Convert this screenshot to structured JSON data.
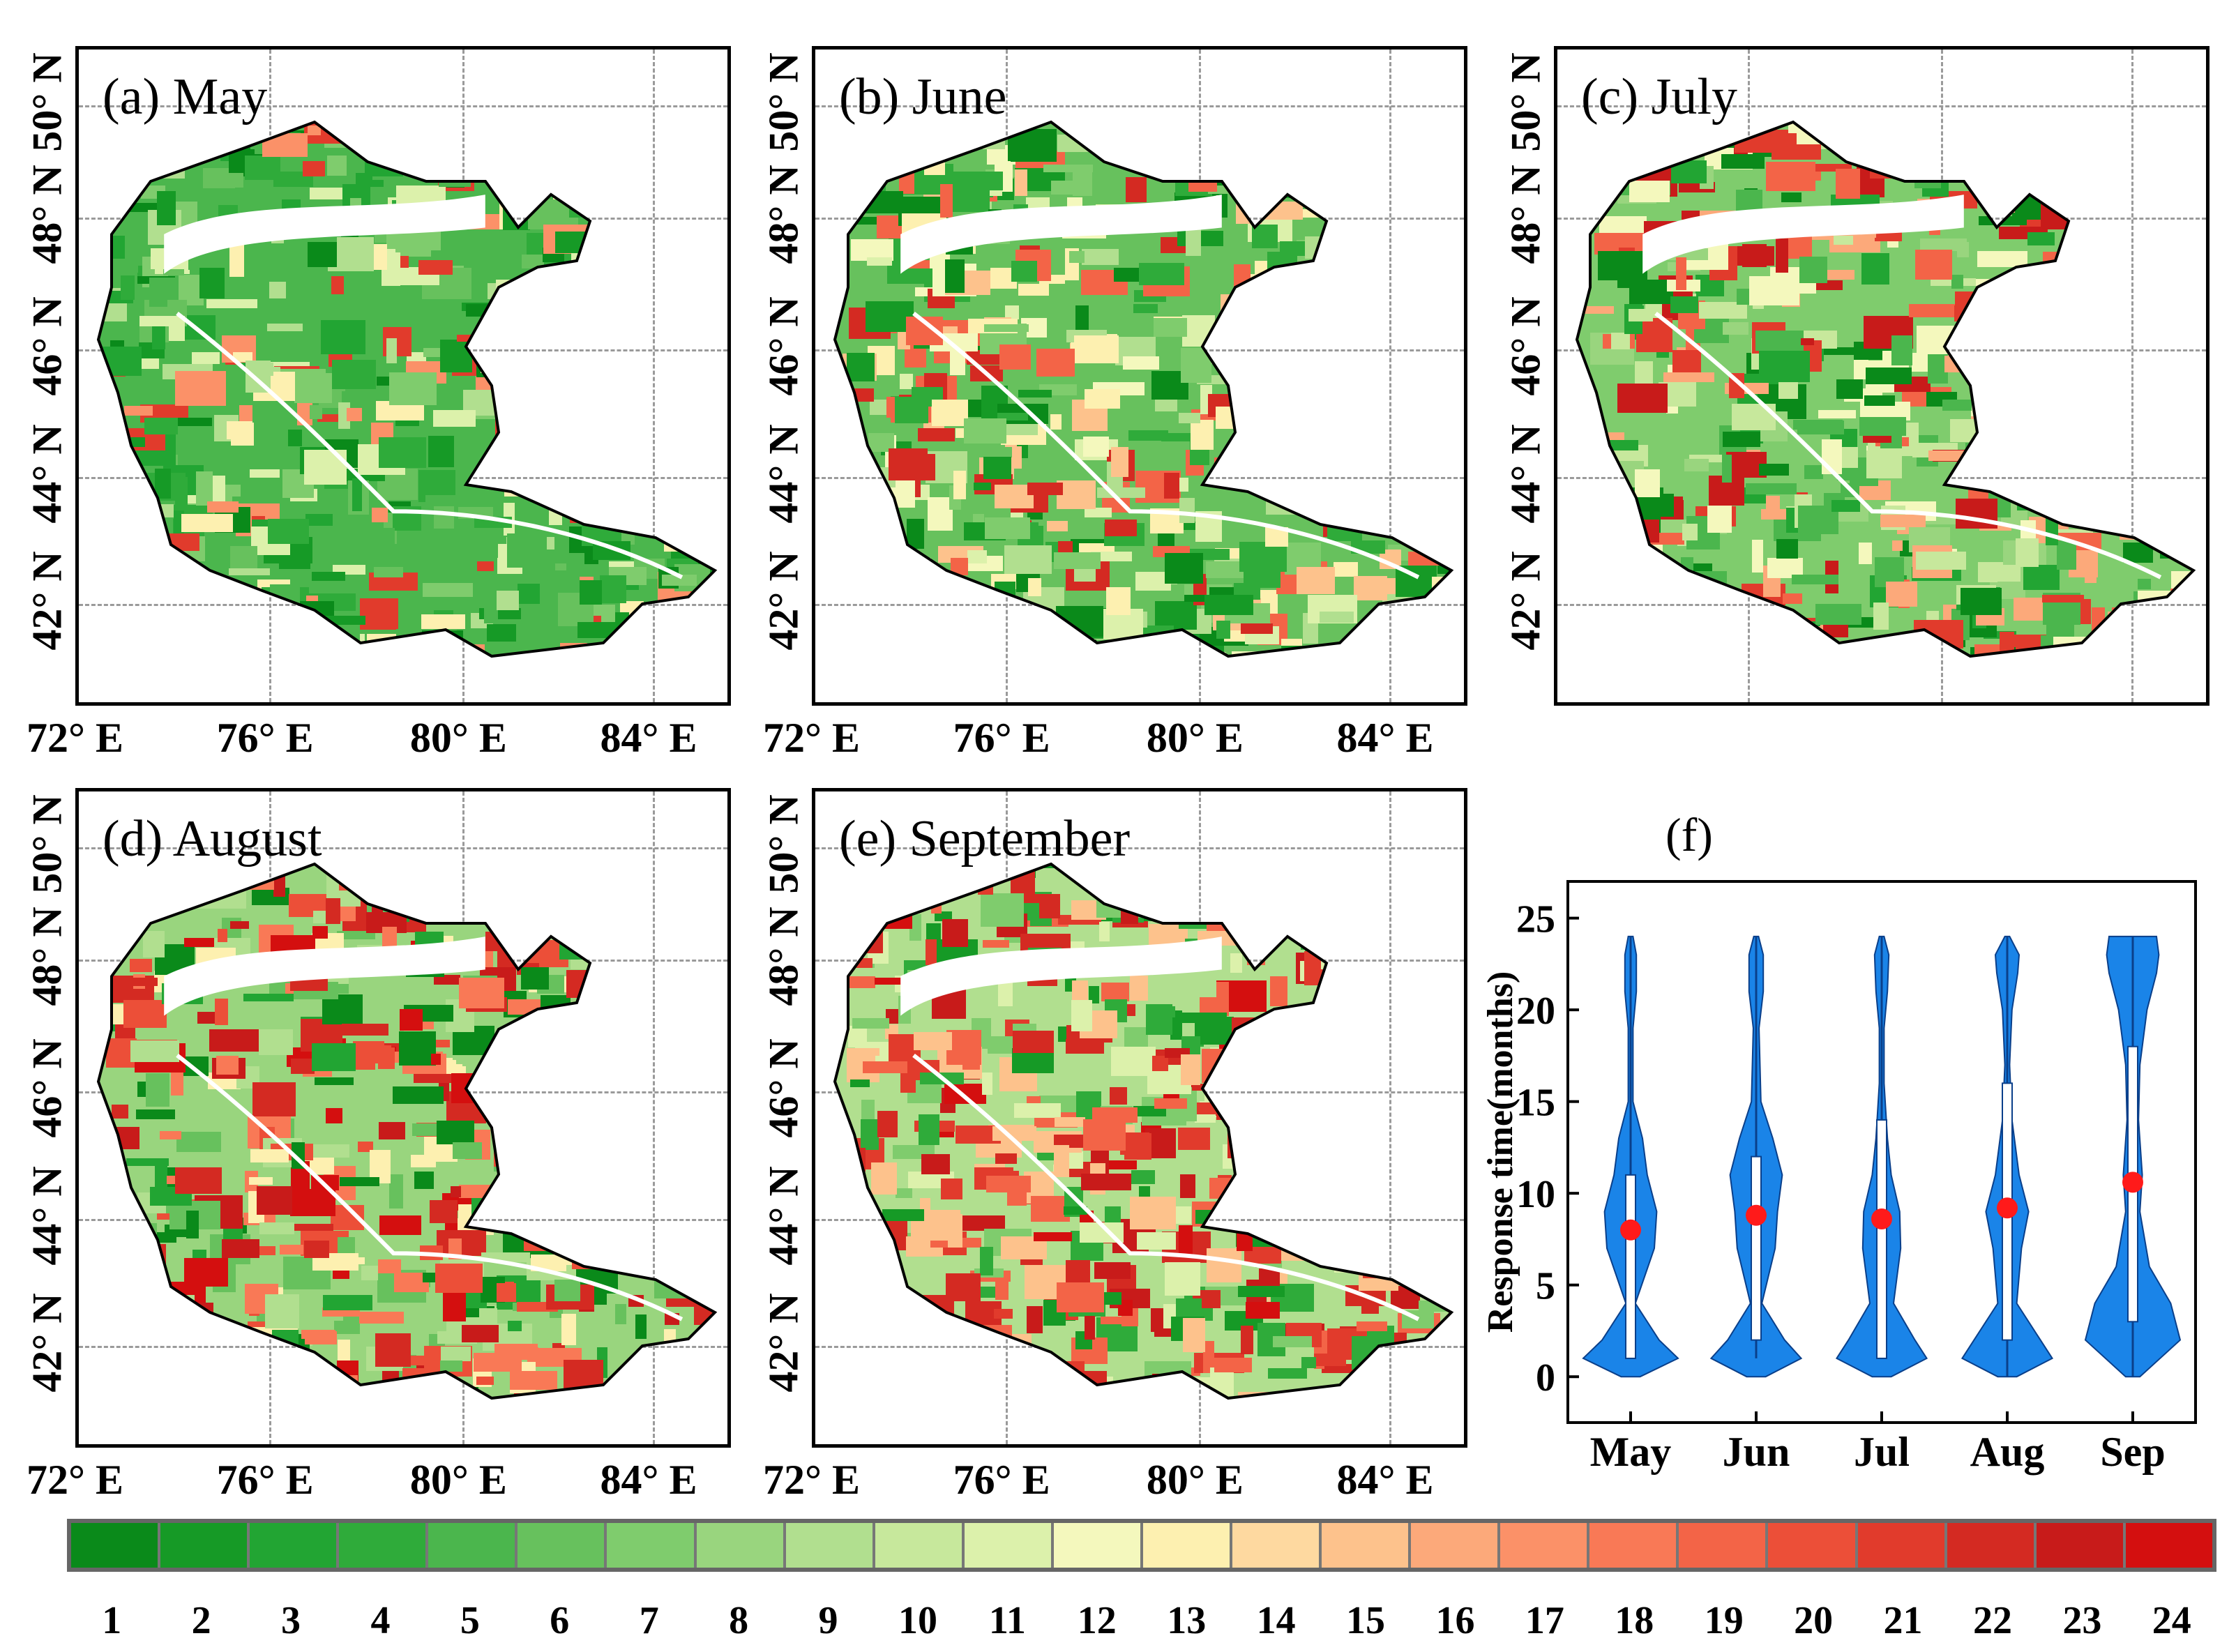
{
  "panels": [
    {
      "id": "a",
      "title": "(a) May"
    },
    {
      "id": "b",
      "title": "(b) June"
    },
    {
      "id": "c",
      "title": "(c) July"
    },
    {
      "id": "d",
      "title": "(d) August"
    },
    {
      "id": "e",
      "title": "(e) September"
    }
  ],
  "lat_labels": [
    "50° N",
    "48° N",
    "46° N",
    "44° N",
    "42° N"
  ],
  "lon_labels": [
    "72° E",
    "76° E",
    "80° E",
    "84° E"
  ],
  "colorbar": {
    "labels": [
      "1",
      "2",
      "3",
      "4",
      "5",
      "6",
      "7",
      "8",
      "9",
      "10",
      "11",
      "12",
      "13",
      "14",
      "15",
      "16",
      "17",
      "18",
      "19",
      "20",
      "21",
      "22",
      "23",
      "24"
    ],
    "colors": [
      "#0a8a1a",
      "#169a26",
      "#22a533",
      "#2fab3a",
      "#4bb64d",
      "#67c15d",
      "#7fcc6d",
      "#99d57e",
      "#b1df8f",
      "#c7e89c",
      "#dcf1ab",
      "#f4f8bd",
      "#fdf0b0",
      "#fed9a0",
      "#fdc28c",
      "#fca97a",
      "#fb9168",
      "#f97956",
      "#f36447",
      "#ec4f38",
      "#e13b2c",
      "#d42a22",
      "#c81b1a",
      "#d40f0f"
    ]
  },
  "chart_data": {
    "type": "violin",
    "title": "(f)",
    "ylabel": "Response time(months)",
    "ylim": [
      -2.5,
      27
    ],
    "yticks": [
      "0",
      "5",
      "10",
      "15",
      "20",
      "25"
    ],
    "categories": [
      "May",
      "Jun",
      "Jul",
      "Aug",
      "Sep"
    ],
    "medians": [
      8,
      8.8,
      8.6,
      9.2,
      10.6
    ],
    "quartiles": [
      [
        1,
        11
      ],
      [
        2,
        12
      ],
      [
        1,
        14
      ],
      [
        2,
        16
      ],
      [
        3,
        18
      ]
    ],
    "whiskers": [
      [
        1,
        24
      ],
      [
        1,
        24
      ],
      [
        1,
        24
      ],
      [
        0,
        24
      ],
      [
        0,
        24
      ]
    ],
    "color": "#1a84e8",
    "median_color": "#ff1a1a"
  }
}
